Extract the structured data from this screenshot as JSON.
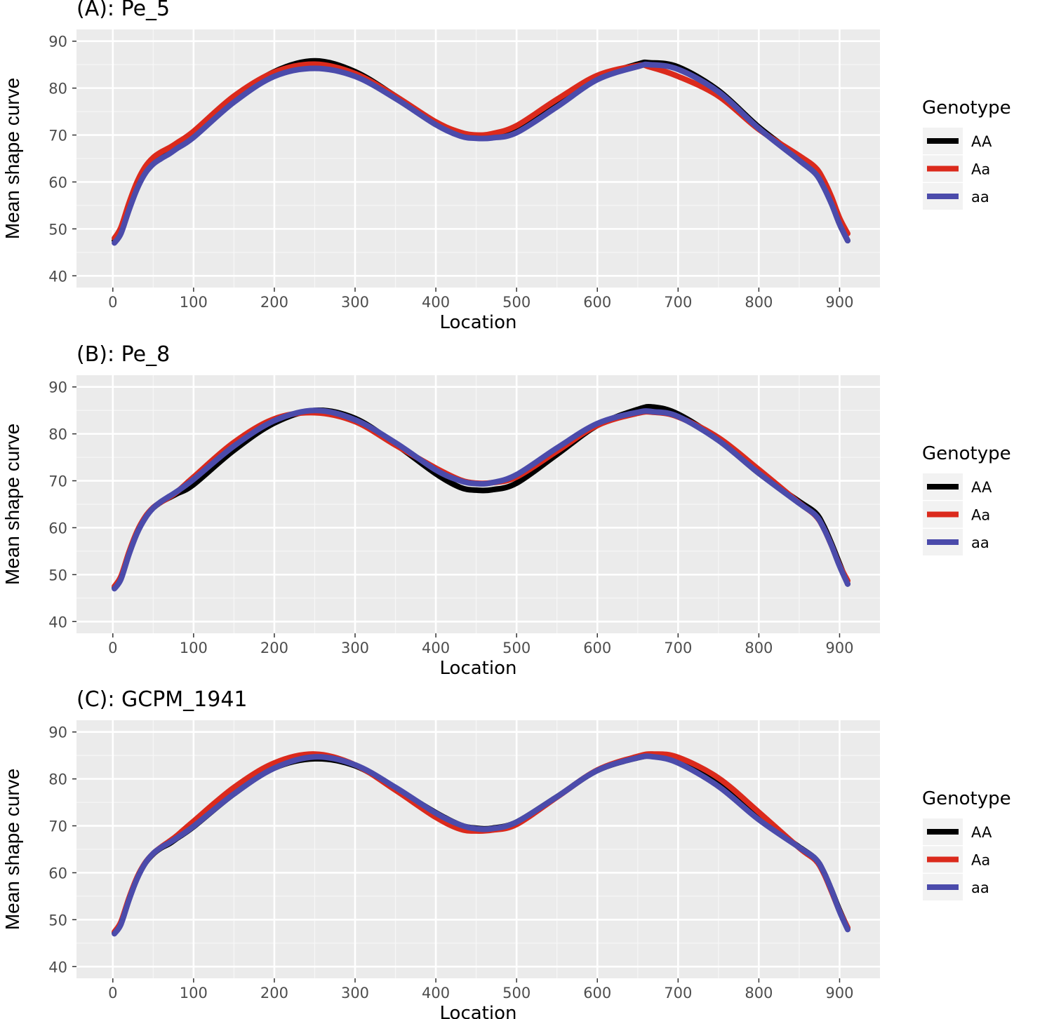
{
  "chart_data": [
    {
      "type": "line",
      "title": "(A): Pe_5",
      "xlabel": "Location",
      "ylabel": "Mean shape curve",
      "xlim": [
        -45,
        950
      ],
      "ylim": [
        37.5,
        92.5
      ],
      "xticks": [
        0,
        100,
        200,
        300,
        400,
        500,
        600,
        700,
        800,
        900
      ],
      "xtick_labels": [
        "0",
        "100",
        "200",
        "300",
        "400",
        "500",
        "600",
        "700",
        "800",
        "900"
      ],
      "yticks": [
        40,
        50,
        60,
        70,
        80,
        90
      ],
      "ytick_labels": [
        "40",
        "50",
        "60",
        "70",
        "80",
        "90"
      ],
      "grid": true,
      "legend": {
        "title": "Genotype",
        "placement": "right"
      },
      "x": [
        2,
        10,
        20,
        30,
        40,
        50,
        60,
        70,
        80,
        100,
        150,
        200,
        250,
        300,
        350,
        400,
        430,
        450,
        470,
        500,
        550,
        600,
        650,
        665,
        700,
        750,
        800,
        850,
        870,
        880,
        890,
        900,
        910
      ],
      "series": [
        {
          "name": "AA",
          "color": "#000000",
          "values": [
            47.5,
            49.5,
            54.5,
            59,
            62.3,
            64.3,
            65.5,
            66.4,
            67.4,
            69.8,
            77.8,
            83.5,
            85.8,
            83.5,
            78.3,
            72.6,
            70.2,
            69.5,
            69.6,
            71.2,
            76.8,
            82.2,
            85.1,
            85.4,
            84.5,
            79.5,
            71.7,
            65.1,
            62.2,
            59.5,
            55.5,
            51,
            47.5
          ]
        },
        {
          "name": "Aa",
          "color": "#db2a1c",
          "values": [
            48,
            50.3,
            55.5,
            60,
            63.2,
            65.2,
            66.4,
            67.3,
            68.4,
            70.8,
            78.3,
            83.4,
            85.1,
            83.1,
            78.3,
            72.8,
            70.6,
            70,
            70.3,
            72,
            77.6,
            82.7,
            84.8,
            84.5,
            82.5,
            78.3,
            71.2,
            65.6,
            63.1,
            60.5,
            56.8,
            52.3,
            49
          ]
        },
        {
          "name": "aa",
          "color": "#4b4bab",
          "values": [
            47,
            49,
            54,
            58.5,
            61.8,
            63.8,
            65,
            66,
            67.2,
            69.5,
            77,
            82.5,
            84.2,
            82.5,
            77.8,
            72.2,
            69.8,
            69.3,
            69.4,
            70.5,
            76,
            81.8,
            84.6,
            85,
            84,
            79.2,
            71.4,
            64.6,
            61.8,
            59,
            55.3,
            51,
            47.5
          ]
        }
      ]
    },
    {
      "type": "line",
      "title": "(B): Pe_8",
      "xlabel": "Location",
      "ylabel": "Mean shape curve",
      "xlim": [
        -45,
        950
      ],
      "ylim": [
        37.5,
        92.5
      ],
      "xticks": [
        0,
        100,
        200,
        300,
        400,
        500,
        600,
        700,
        800,
        900
      ],
      "xtick_labels": [
        "0",
        "100",
        "200",
        "300",
        "400",
        "500",
        "600",
        "700",
        "800",
        "900"
      ],
      "yticks": [
        40,
        50,
        60,
        70,
        80,
        90
      ],
      "ytick_labels": [
        "40",
        "50",
        "60",
        "70",
        "80",
        "90"
      ],
      "grid": true,
      "legend": {
        "title": "Genotype",
        "placement": "right"
      },
      "x": [
        2,
        10,
        20,
        30,
        40,
        50,
        60,
        70,
        80,
        100,
        150,
        200,
        250,
        300,
        350,
        400,
        430,
        450,
        470,
        500,
        550,
        600,
        650,
        670,
        700,
        750,
        800,
        850,
        870,
        880,
        890,
        900,
        910
      ],
      "series": [
        {
          "name": "AA",
          "color": "#000000",
          "values": [
            47.2,
            49.2,
            54.5,
            59,
            62.2,
            64.2,
            65.5,
            66.4,
            67.3,
            69.2,
            76.5,
            82.3,
            85,
            83.3,
            77.8,
            71.5,
            68.6,
            68,
            68.1,
            69.5,
            75.6,
            81.8,
            85.2,
            85.7,
            84.2,
            78.8,
            71.6,
            65.6,
            63.2,
            60.5,
            56.6,
            52.3,
            48
          ]
        },
        {
          "name": "Aa",
          "color": "#db2a1c",
          "values": [
            47.5,
            49.6,
            54.8,
            59.2,
            62.3,
            64.3,
            65.5,
            66.5,
            67.7,
            70.8,
            78.2,
            83.2,
            84.5,
            82.6,
            77.6,
            72.7,
            70.2,
            69.5,
            69.6,
            70.8,
            76.3,
            81.8,
            84.4,
            84.6,
            83.6,
            79.2,
            72.4,
            65.3,
            62.6,
            60,
            56.2,
            52,
            48.7
          ]
        },
        {
          "name": "aa",
          "color": "#4b4bab",
          "values": [
            47,
            49,
            54.3,
            58.8,
            62,
            64.2,
            65.6,
            66.7,
            67.8,
            70.3,
            77.4,
            82.8,
            85,
            83,
            78.1,
            72.3,
            70,
            69.4,
            69.6,
            71.3,
            77,
            82.2,
            84.6,
            84.7,
            83.7,
            78.6,
            71.6,
            65.2,
            62.7,
            60,
            56.2,
            51.8,
            48
          ]
        }
      ]
    },
    {
      "type": "line",
      "title": "(C): GCPM_1941",
      "xlabel": "Location",
      "ylabel": "Mean shape curve",
      "xlim": [
        -45,
        950
      ],
      "ylim": [
        37.5,
        92.5
      ],
      "xticks": [
        0,
        100,
        200,
        300,
        400,
        500,
        600,
        700,
        800,
        900
      ],
      "xtick_labels": [
        "0",
        "100",
        "200",
        "300",
        "400",
        "500",
        "600",
        "700",
        "800",
        "900"
      ],
      "yticks": [
        40,
        50,
        60,
        70,
        80,
        90
      ],
      "ytick_labels": [
        "40",
        "50",
        "60",
        "70",
        "80",
        "90"
      ],
      "grid": true,
      "legend": {
        "title": "Genotype",
        "placement": "right"
      },
      "x": [
        2,
        10,
        20,
        30,
        40,
        50,
        60,
        70,
        80,
        100,
        150,
        200,
        250,
        300,
        350,
        400,
        430,
        450,
        470,
        500,
        550,
        600,
        650,
        670,
        700,
        750,
        800,
        850,
        870,
        880,
        890,
        900,
        910
      ],
      "series": [
        {
          "name": "AA",
          "color": "#000000",
          "values": [
            47.2,
            49.2,
            54.3,
            58.8,
            62,
            64,
            65.3,
            66.2,
            67.4,
            69.8,
            76.8,
            82.3,
            84.3,
            82.8,
            78,
            72.8,
            70.2,
            69.5,
            69.5,
            70.8,
            76.2,
            81.8,
            84.5,
            84.8,
            83.7,
            78.8,
            71.6,
            65.5,
            63,
            60.3,
            56.3,
            52,
            48.2
          ]
        },
        {
          "name": "Aa",
          "color": "#db2a1c",
          "values": [
            47.4,
            49.5,
            54.6,
            59,
            62.1,
            64.1,
            65.5,
            66.7,
            68,
            71,
            78.2,
            83.4,
            85.3,
            83,
            77.6,
            71.8,
            69.3,
            68.9,
            69.1,
            70.3,
            76.1,
            81.9,
            84.8,
            85.3,
            84.6,
            80.2,
            72.9,
            65.3,
            62.7,
            60,
            56,
            51.8,
            48.3
          ]
        },
        {
          "name": "aa",
          "color": "#4b4bab",
          "values": [
            47,
            49,
            54.2,
            58.7,
            62,
            64.1,
            65.4,
            66.4,
            67.5,
            69.9,
            76.8,
            82.3,
            84.7,
            83,
            78.2,
            72.7,
            70.2,
            69.4,
            69.4,
            70.8,
            76.2,
            81.8,
            84.5,
            84.7,
            83.4,
            78.4,
            71.3,
            65.4,
            63,
            60.3,
            56.3,
            51.7,
            47.9
          ]
        }
      ]
    }
  ]
}
